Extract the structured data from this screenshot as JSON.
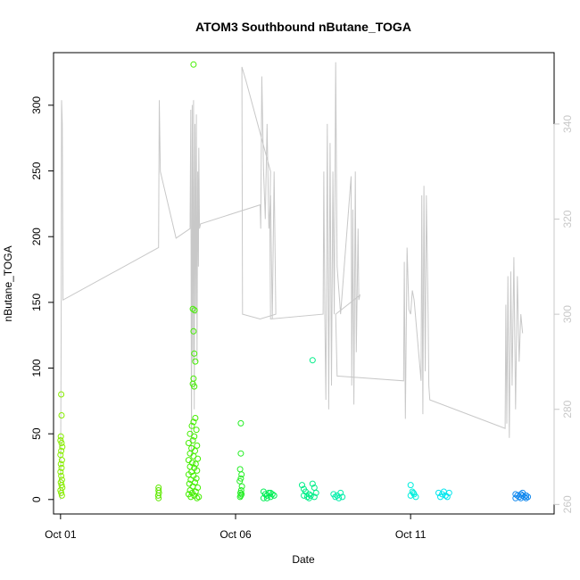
{
  "chart_data": {
    "type": "scatter",
    "title": "ATOM3 Southbound nButane_TOGA",
    "xlabel": "Date",
    "ylabel": "nButane_TOGA",
    "x_ticks": [
      "Oct 01",
      "Oct 06",
      "Oct 11"
    ],
    "x_tick_days": [
      1,
      6,
      11
    ],
    "xlim": [
      0.8,
      15.1
    ],
    "ylim": [
      -11,
      340
    ],
    "y_ticks": [
      0,
      50,
      100,
      150,
      200,
      250,
      300
    ],
    "right_ylim": [
      258,
      355
    ],
    "right_y_ticks": [
      260,
      280,
      300,
      320,
      340
    ],
    "grid": false,
    "series": [
      {
        "type": "scatter",
        "x_units": "day of October",
        "points": [
          [
            1.02,
            80,
            "#88ee00"
          ],
          [
            1.03,
            64,
            "#88ee00"
          ],
          [
            1.01,
            48,
            "#88ee00"
          ],
          [
            1.0,
            45,
            "#88ee00"
          ],
          [
            1.03,
            43,
            "#88ee00"
          ],
          [
            1.05,
            40,
            "#88ee00"
          ],
          [
            1.02,
            37,
            "#88ee00"
          ],
          [
            1.0,
            34,
            "#88ee00"
          ],
          [
            1.04,
            30,
            "#88ee00"
          ],
          [
            1.01,
            27,
            "#88ee00"
          ],
          [
            1.03,
            24,
            "#88ee00"
          ],
          [
            1.0,
            21,
            "#88ee00"
          ],
          [
            1.02,
            18,
            "#88ee00"
          ],
          [
            1.04,
            15,
            "#88ee00"
          ],
          [
            1.01,
            13,
            "#88ee00"
          ],
          [
            1.03,
            11,
            "#88ee00"
          ],
          [
            1.05,
            9,
            "#88ee00"
          ],
          [
            1.0,
            7,
            "#88ee00"
          ],
          [
            1.02,
            5,
            "#88ee00"
          ],
          [
            1.04,
            3,
            "#88ee00"
          ],
          [
            3.8,
            9,
            "#5ee800"
          ],
          [
            3.8,
            7,
            "#5ee800"
          ],
          [
            3.81,
            5,
            "#5ee800"
          ],
          [
            3.79,
            3,
            "#5ee800"
          ],
          [
            3.8,
            1,
            "#5ee800"
          ],
          [
            4.8,
            331,
            "#44ee00"
          ],
          [
            4.78,
            145,
            "#44ee00"
          ],
          [
            4.83,
            144,
            "#44ee00"
          ],
          [
            4.8,
            128,
            "#44ee00"
          ],
          [
            4.82,
            111,
            "#44ee00"
          ],
          [
            4.85,
            105,
            "#44ee00"
          ],
          [
            4.8,
            92,
            "#44ee00"
          ],
          [
            4.78,
            88,
            "#44ee00"
          ],
          [
            4.82,
            86,
            "#44ee00"
          ],
          [
            4.85,
            62,
            "#44ee00"
          ],
          [
            4.8,
            59,
            "#44ee00"
          ],
          [
            4.75,
            56,
            "#44ee00"
          ],
          [
            4.88,
            53,
            "#44ee00"
          ],
          [
            4.7,
            50,
            "#44ee00"
          ],
          [
            4.82,
            48,
            "#44ee00"
          ],
          [
            4.78,
            45,
            "#44ee00"
          ],
          [
            4.66,
            43,
            "#44ee00"
          ],
          [
            4.9,
            41,
            "#44ee00"
          ],
          [
            4.74,
            39,
            "#44ee00"
          ],
          [
            4.84,
            37,
            "#44ee00"
          ],
          [
            4.7,
            35,
            "#44ee00"
          ],
          [
            4.8,
            33,
            "#44ee00"
          ],
          [
            4.92,
            31,
            "#44ee00"
          ],
          [
            4.66,
            30,
            "#44ee00"
          ],
          [
            4.76,
            28,
            "#44ee00"
          ],
          [
            4.86,
            27,
            "#44ee00"
          ],
          [
            4.7,
            25,
            "#44ee00"
          ],
          [
            4.82,
            24,
            "#44ee00"
          ],
          [
            4.9,
            22,
            "#44ee00"
          ],
          [
            4.74,
            21,
            "#44ee00"
          ],
          [
            4.66,
            19,
            "#44ee00"
          ],
          [
            4.8,
            18,
            "#44ee00"
          ],
          [
            4.88,
            16,
            "#44ee00"
          ],
          [
            4.72,
            15,
            "#44ee00"
          ],
          [
            4.84,
            13,
            "#44ee00"
          ],
          [
            4.68,
            12,
            "#44ee00"
          ],
          [
            4.78,
            10,
            "#44ee00"
          ],
          [
            4.92,
            9,
            "#44ee00"
          ],
          [
            4.7,
            7,
            "#44ee00"
          ],
          [
            4.86,
            6,
            "#44ee00"
          ],
          [
            4.76,
            5,
            "#44ee00"
          ],
          [
            4.66,
            4,
            "#44ee00"
          ],
          [
            4.82,
            3,
            "#44ee00"
          ],
          [
            4.72,
            2,
            "#44ee00"
          ],
          [
            4.95,
            2,
            "#44ee00"
          ],
          [
            4.9,
            1,
            "#44ee00"
          ],
          [
            6.15,
            58,
            "#22ee22"
          ],
          [
            6.15,
            35,
            "#22ee22"
          ],
          [
            6.13,
            23,
            "#22ee22"
          ],
          [
            6.17,
            19,
            "#22ee22"
          ],
          [
            6.15,
            16,
            "#22ee22"
          ],
          [
            6.12,
            14,
            "#22ee22"
          ],
          [
            6.18,
            10,
            "#22ee22"
          ],
          [
            6.16,
            7,
            "#22ee22"
          ],
          [
            6.14,
            5,
            "#22ee22"
          ],
          [
            6.17,
            4,
            "#22ee22"
          ],
          [
            6.15,
            3,
            "#22ee22"
          ],
          [
            6.13,
            2,
            "#22ee22"
          ],
          [
            6.8,
            6,
            "#00ee55"
          ],
          [
            6.85,
            4,
            "#00ee55"
          ],
          [
            6.9,
            3,
            "#00ee55"
          ],
          [
            6.95,
            5,
            "#00ee55"
          ],
          [
            7.0,
            2,
            "#00ee55"
          ],
          [
            7.05,
            4,
            "#00ee55"
          ],
          [
            7.1,
            3,
            "#00ee55"
          ],
          [
            6.8,
            1,
            "#00ee55"
          ],
          [
            6.9,
            1,
            "#00ee55"
          ],
          [
            7.0,
            5,
            "#00ee55"
          ],
          [
            8.2,
            106,
            "#00ee88"
          ],
          [
            7.9,
            11,
            "#00ee88"
          ],
          [
            7.95,
            8,
            "#00ee88"
          ],
          [
            8.0,
            6,
            "#00ee88"
          ],
          [
            8.1,
            4,
            "#00ee88"
          ],
          [
            8.2,
            12,
            "#00ee88"
          ],
          [
            8.25,
            9,
            "#00ee88"
          ],
          [
            8.15,
            3,
            "#00ee88"
          ],
          [
            8.05,
            2,
            "#00ee88"
          ],
          [
            7.95,
            3,
            "#00ee88"
          ],
          [
            8.3,
            5,
            "#00ee88"
          ],
          [
            8.25,
            2,
            "#00ee88"
          ],
          [
            8.1,
            1,
            "#00ee88"
          ],
          [
            8.8,
            4,
            "#00eeaa"
          ],
          [
            8.9,
            3,
            "#00eeaa"
          ],
          [
            9.0,
            5,
            "#00eeaa"
          ],
          [
            9.05,
            2,
            "#00eeaa"
          ],
          [
            8.85,
            2,
            "#00eeaa"
          ],
          [
            8.95,
            1,
            "#00eeaa"
          ],
          [
            11.0,
            11,
            "#00eedd"
          ],
          [
            11.05,
            6,
            "#00eedd"
          ],
          [
            11.1,
            4,
            "#00eedd"
          ],
          [
            11.0,
            3,
            "#00eedd"
          ],
          [
            11.15,
            2,
            "#00eedd"
          ],
          [
            11.08,
            5,
            "#00eedd"
          ],
          [
            11.8,
            5,
            "#00e6ee"
          ],
          [
            11.9,
            4,
            "#00e6ee"
          ],
          [
            12.0,
            3,
            "#00e6ee"
          ],
          [
            12.1,
            5,
            "#00e6ee"
          ],
          [
            11.85,
            2,
            "#00e6ee"
          ],
          [
            12.05,
            2,
            "#00e6ee"
          ],
          [
            11.95,
            6,
            "#00e6ee"
          ],
          [
            14.0,
            4,
            "#1188ee"
          ],
          [
            14.05,
            3,
            "#1188ee"
          ],
          [
            14.1,
            2,
            "#1188ee"
          ],
          [
            14.15,
            4,
            "#1188ee"
          ],
          [
            14.2,
            3,
            "#1188ee"
          ],
          [
            14.25,
            2,
            "#1188ee"
          ],
          [
            14.3,
            3,
            "#1188ee"
          ],
          [
            14.35,
            2,
            "#1188ee"
          ],
          [
            14.0,
            1,
            "#1188ee"
          ],
          [
            14.15,
            1,
            "#1188ee"
          ],
          [
            14.3,
            1,
            "#1188ee"
          ],
          [
            14.2,
            5,
            "#1188ee"
          ]
        ]
      },
      {
        "type": "line",
        "axis": "right",
        "color": "#c8c8c8",
        "x_units": "day of October",
        "points": [
          [
            1.0,
            261
          ],
          [
            1.02,
            300
          ],
          [
            1.03,
            345
          ],
          [
            1.05,
            340
          ],
          [
            1.07,
            303
          ],
          [
            3.8,
            314
          ],
          [
            3.82,
            345
          ],
          [
            3.85,
            330
          ],
          [
            4.3,
            316
          ],
          [
            4.7,
            318
          ],
          [
            4.72,
            343
          ],
          [
            4.74,
            270
          ],
          [
            4.76,
            344
          ],
          [
            4.78,
            290
          ],
          [
            4.8,
            345
          ],
          [
            4.82,
            280
          ],
          [
            4.84,
            340
          ],
          [
            4.86,
            300
          ],
          [
            4.88,
            342
          ],
          [
            4.9,
            290
          ],
          [
            4.92,
            330
          ],
          [
            4.94,
            310
          ],
          [
            4.95,
            335
          ],
          [
            4.97,
            318
          ],
          [
            5.0,
            319
          ],
          [
            6.7,
            323
          ],
          [
            6.72,
            318
          ],
          [
            6.75,
            350
          ],
          [
            6.8,
            330
          ],
          [
            6.85,
            320
          ],
          [
            6.9,
            340
          ],
          [
            6.95,
            318
          ],
          [
            7.0,
            325
          ],
          [
            7.05,
            299
          ],
          [
            7.1,
            330
          ],
          [
            7.15,
            300
          ],
          [
            6.7,
            299
          ],
          [
            6.2,
            300
          ],
          [
            6.18,
            352
          ],
          [
            6.3,
            349
          ],
          [
            7.0,
            330
          ],
          [
            6.98,
            320
          ],
          [
            7.0,
            299
          ],
          [
            8.5,
            300
          ],
          [
            8.52,
            330
          ],
          [
            8.55,
            300
          ],
          [
            8.58,
            282
          ],
          [
            8.62,
            340
          ],
          [
            8.66,
            280
          ],
          [
            8.7,
            336
          ],
          [
            8.74,
            285
          ],
          [
            8.78,
            330
          ],
          [
            8.82,
            300
          ],
          [
            8.86,
            353
          ],
          [
            8.9,
            310
          ],
          [
            9.0,
            300
          ],
          [
            9.3,
            329
          ],
          [
            9.32,
            285
          ],
          [
            9.35,
            322
          ],
          [
            9.38,
            281
          ],
          [
            9.42,
            330
          ],
          [
            9.45,
            292
          ],
          [
            9.5,
            318
          ],
          [
            9.52,
            303
          ],
          [
            9.55,
            304
          ],
          [
            8.86,
            300
          ],
          [
            8.9,
            287
          ],
          [
            10.8,
            286
          ],
          [
            10.82,
            311
          ],
          [
            10.85,
            278
          ],
          [
            10.9,
            314
          ],
          [
            10.95,
            301
          ],
          [
            11.0,
            300
          ],
          [
            11.05,
            305
          ],
          [
            11.1,
            303
          ],
          [
            11.3,
            286
          ],
          [
            11.32,
            325
          ],
          [
            11.35,
            279
          ],
          [
            11.38,
            327
          ],
          [
            11.42,
            288
          ],
          [
            11.45,
            325
          ],
          [
            11.5,
            300
          ],
          [
            11.52,
            285
          ],
          [
            11.55,
            282
          ],
          [
            13.7,
            276
          ],
          [
            13.72,
            302
          ],
          [
            13.75,
            277
          ],
          [
            13.78,
            308
          ],
          [
            13.82,
            274
          ],
          [
            13.86,
            309
          ],
          [
            13.9,
            285
          ],
          [
            13.95,
            312
          ],
          [
            14.0,
            280
          ],
          [
            14.05,
            308
          ],
          [
            14.1,
            290
          ],
          [
            14.15,
            300
          ],
          [
            14.2,
            296
          ]
        ]
      }
    ]
  }
}
